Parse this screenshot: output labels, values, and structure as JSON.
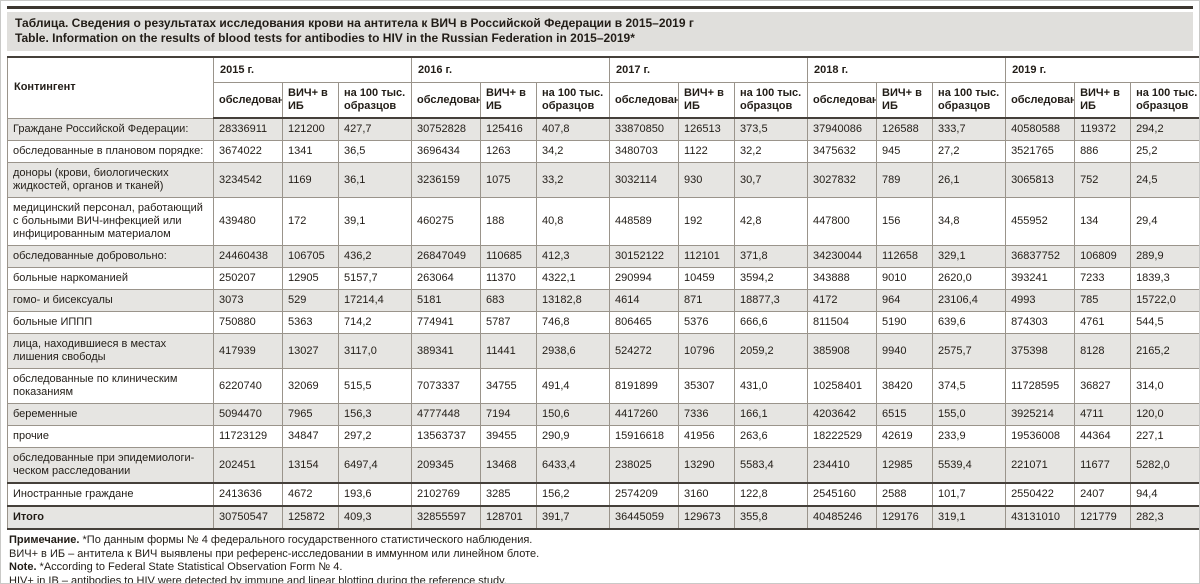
{
  "title": {
    "ru": "Таблица. Сведения о результатах исследования крови на антитела к ВИЧ в Российской Федерации в 2015–2019 г",
    "en": "Table. Information on the results of blood tests for antibodies to HIV in the Russian Federation in 2015–2019*"
  },
  "colors": {
    "shaded_row": "#e6e5e2",
    "title_bg": "#e0dfdc",
    "heavy_rule": "#45403a"
  },
  "table": {
    "contingent_header": "Контингент",
    "years": [
      "2015 г.",
      "2016 г.",
      "2017 г.",
      "2018 г.",
      "2019 г."
    ],
    "columns": [
      "обследовано",
      "ВИЧ+ в ИБ",
      "на 100 тыс. образцов"
    ],
    "rows": [
      {
        "label": "Граждане Российской Федерации:",
        "indent": 0,
        "shaded": true,
        "section": false,
        "total": false,
        "values": [
          [
            "28336911",
            "121200",
            "427,7"
          ],
          [
            "30752828",
            "125416",
            "407,8"
          ],
          [
            "33870850",
            "126513",
            "373,5"
          ],
          [
            "37940086",
            "126588",
            "333,7"
          ],
          [
            "40580588",
            "119372",
            "294,2"
          ]
        ]
      },
      {
        "label": "обследованные в плановом порядке:",
        "indent": 1,
        "shaded": false,
        "section": false,
        "total": false,
        "values": [
          [
            "3674022",
            "1341",
            "36,5"
          ],
          [
            "3696434",
            "1263",
            "34,2"
          ],
          [
            "3480703",
            "1122",
            "32,2"
          ],
          [
            "3475632",
            "945",
            "27,2"
          ],
          [
            "3521765",
            "886",
            "25,2"
          ]
        ]
      },
      {
        "label": "доноры (крови, биологических жидкостей, органов и тканей)",
        "indent": 2,
        "shaded": true,
        "section": false,
        "total": false,
        "values": [
          [
            "3234542",
            "1169",
            "36,1"
          ],
          [
            "3236159",
            "1075",
            "33,2"
          ],
          [
            "3032114",
            "930",
            "30,7"
          ],
          [
            "3027832",
            "789",
            "26,1"
          ],
          [
            "3065813",
            "752",
            "24,5"
          ]
        ]
      },
      {
        "label": "медицинский персонал, работающий с больными ВИЧ-инфекцией или инфицированным материалом",
        "indent": 2,
        "shaded": false,
        "section": false,
        "total": false,
        "values": [
          [
            "439480",
            "172",
            "39,1"
          ],
          [
            "460275",
            "188",
            "40,8"
          ],
          [
            "448589",
            "192",
            "42,8"
          ],
          [
            "447800",
            "156",
            "34,8"
          ],
          [
            "455952",
            "134",
            "29,4"
          ]
        ]
      },
      {
        "label": "обследованные добровольно:",
        "indent": 1,
        "shaded": true,
        "section": false,
        "total": false,
        "values": [
          [
            "24460438",
            "106705",
            "436,2"
          ],
          [
            "26847049",
            "110685",
            "412,3"
          ],
          [
            "30152122",
            "112101",
            "371,8"
          ],
          [
            "34230044",
            "112658",
            "329,1"
          ],
          [
            "36837752",
            "106809",
            "289,9"
          ]
        ]
      },
      {
        "label": "больные наркоманией",
        "indent": 2,
        "shaded": false,
        "section": false,
        "total": false,
        "values": [
          [
            "250207",
            "12905",
            "5157,7"
          ],
          [
            "263064",
            "11370",
            "4322,1"
          ],
          [
            "290994",
            "10459",
            "3594,2"
          ],
          [
            "343888",
            "9010",
            "2620,0"
          ],
          [
            "393241",
            "7233",
            "1839,3"
          ]
        ]
      },
      {
        "label": "гомо- и бисексуалы",
        "indent": 2,
        "shaded": true,
        "section": false,
        "total": false,
        "values": [
          [
            "3073",
            "529",
            "17214,4"
          ],
          [
            "5181",
            "683",
            "13182,8"
          ],
          [
            "4614",
            "871",
            "18877,3"
          ],
          [
            "4172",
            "964",
            "23106,4"
          ],
          [
            "4993",
            "785",
            "15722,0"
          ]
        ]
      },
      {
        "label": "больные ИППП",
        "indent": 2,
        "shaded": false,
        "section": false,
        "total": false,
        "values": [
          [
            "750880",
            "5363",
            "714,2"
          ],
          [
            "774941",
            "5787",
            "746,8"
          ],
          [
            "806465",
            "5376",
            "666,6"
          ],
          [
            "811504",
            "5190",
            "639,6"
          ],
          [
            "874303",
            "4761",
            "544,5"
          ]
        ]
      },
      {
        "label": "лица, находившиеся в местах лишения свободы",
        "indent": 2,
        "shaded": true,
        "section": false,
        "total": false,
        "values": [
          [
            "417939",
            "13027",
            "3117,0"
          ],
          [
            "389341",
            "11441",
            "2938,6"
          ],
          [
            "524272",
            "10796",
            "2059,2"
          ],
          [
            "385908",
            "9940",
            "2575,7"
          ],
          [
            "375398",
            "8128",
            "2165,2"
          ]
        ]
      },
      {
        "label": "обследованные по клиническим показаниям",
        "indent": 2,
        "shaded": false,
        "section": false,
        "total": false,
        "values": [
          [
            "6220740",
            "32069",
            "515,5"
          ],
          [
            "7073337",
            "34755",
            "491,4"
          ],
          [
            "8191899",
            "35307",
            "431,0"
          ],
          [
            "10258401",
            "38420",
            "374,5"
          ],
          [
            "11728595",
            "36827",
            "314,0"
          ]
        ]
      },
      {
        "label": "беременные",
        "indent": 2,
        "shaded": true,
        "section": false,
        "total": false,
        "values": [
          [
            "5094470",
            "7965",
            "156,3"
          ],
          [
            "4777448",
            "7194",
            "150,6"
          ],
          [
            "4417260",
            "7336",
            "166,1"
          ],
          [
            "4203642",
            "6515",
            "155,0"
          ],
          [
            "3925214",
            "4711",
            "120,0"
          ]
        ]
      },
      {
        "label": "прочие",
        "indent": 2,
        "shaded": false,
        "section": false,
        "total": false,
        "values": [
          [
            "11723129",
            "34847",
            "297,2"
          ],
          [
            "13563737",
            "39455",
            "290,9"
          ],
          [
            "15916618",
            "41956",
            "263,6"
          ],
          [
            "18222529",
            "42619",
            "233,9"
          ],
          [
            "19536008",
            "44364",
            "227,1"
          ]
        ]
      },
      {
        "label": "обследованные при эпидемиологи­ческом расследовании",
        "indent": 2,
        "shaded": true,
        "section": false,
        "total": false,
        "values": [
          [
            "202451",
            "13154",
            "6497,4"
          ],
          [
            "209345",
            "13468",
            "6433,4"
          ],
          [
            "238025",
            "13290",
            "5583,4"
          ],
          [
            "234410",
            "12985",
            "5539,4"
          ],
          [
            "221071",
            "11677",
            "5282,0"
          ]
        ]
      },
      {
        "label": "Иностранные граждане",
        "indent": 1,
        "shaded": false,
        "section": true,
        "total": false,
        "values": [
          [
            "2413636",
            "4672",
            "193,6"
          ],
          [
            "2102769",
            "3285",
            "156,2"
          ],
          [
            "2574209",
            "3160",
            "122,8"
          ],
          [
            "2545160",
            "2588",
            "101,7"
          ],
          [
            "2550422",
            "2407",
            "94,4"
          ]
        ]
      },
      {
        "label": "Итого",
        "indent": 0,
        "shaded": true,
        "section": false,
        "total": true,
        "values": [
          [
            "30750547",
            "125872",
            "409,3"
          ],
          [
            "32855597",
            "128701",
            "391,7"
          ],
          [
            "36445059",
            "129673",
            "355,8"
          ],
          [
            "40485246",
            "129176",
            "319,1"
          ],
          [
            "43131010",
            "121779",
            "282,3"
          ]
        ]
      }
    ]
  },
  "footnotes": [
    {
      "lead": "Примечание.",
      "text": " *По данным формы № 4 федерального государственного статистического наблюдения."
    },
    {
      "lead": "",
      "text": "ВИЧ+ в ИБ – антитела к ВИЧ выявлены при референс-исследовании в иммунном или линейном блоте."
    },
    {
      "lead": "Note.",
      "text": " *According to Federal State Statistical Observation Form № 4."
    },
    {
      "lead": "",
      "text": "HIV+ in IB – antibodies to HIV were detected by immune and linear blotting during the reference study."
    }
  ]
}
